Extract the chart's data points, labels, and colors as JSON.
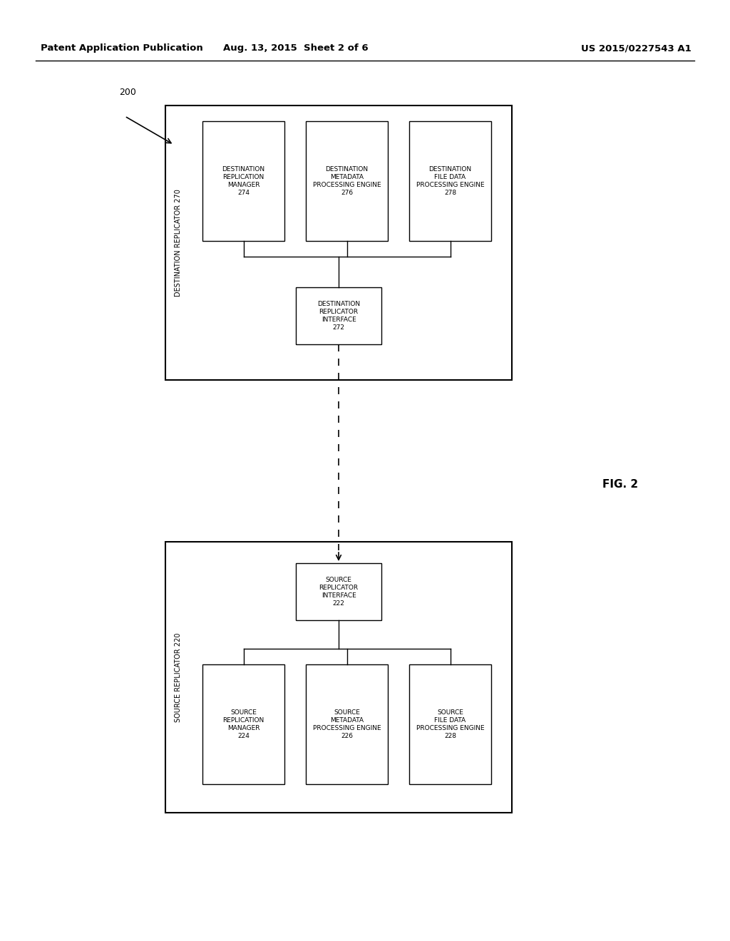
{
  "fig_width": 10.24,
  "fig_height": 13.2,
  "bg_color": "#ffffff",
  "header_left": "Patent Application Publication",
  "header_mid": "Aug. 13, 2015  Sheet 2 of 6",
  "header_right": "US 2015/0227543 A1",
  "fig_label": "FIG. 2",
  "ref_200": "200",
  "dest_replicator_label": "DESTINATION REPLICATOR 270",
  "dest_interface_label": "DESTINATION\nREPLICATOR\nINTERFACE\n272",
  "dest_manager_label": "DESTINATION\nREPLICATION\nMANAGER\n274",
  "dest_metadata_label": "DESTINATION\nMETADATA\nPROCESSING ENGINE\n276",
  "dest_filedata_label": "DESTINATION\nFILE DATA\nPROCESSING ENGINE\n278",
  "src_replicator_label": "SOURCE REPLICATOR 220",
  "src_interface_label": "SOURCE\nREPLICATOR\nINTERFACE\n222",
  "src_manager_label": "SOURCE\nREPLICATION\nMANAGER\n224",
  "src_metadata_label": "SOURCE\nMETADATA\nPROCESSING ENGINE\n226",
  "src_filedata_label": "SOURCE\nFILE DATA\nPROCESSING ENGINE\n228"
}
